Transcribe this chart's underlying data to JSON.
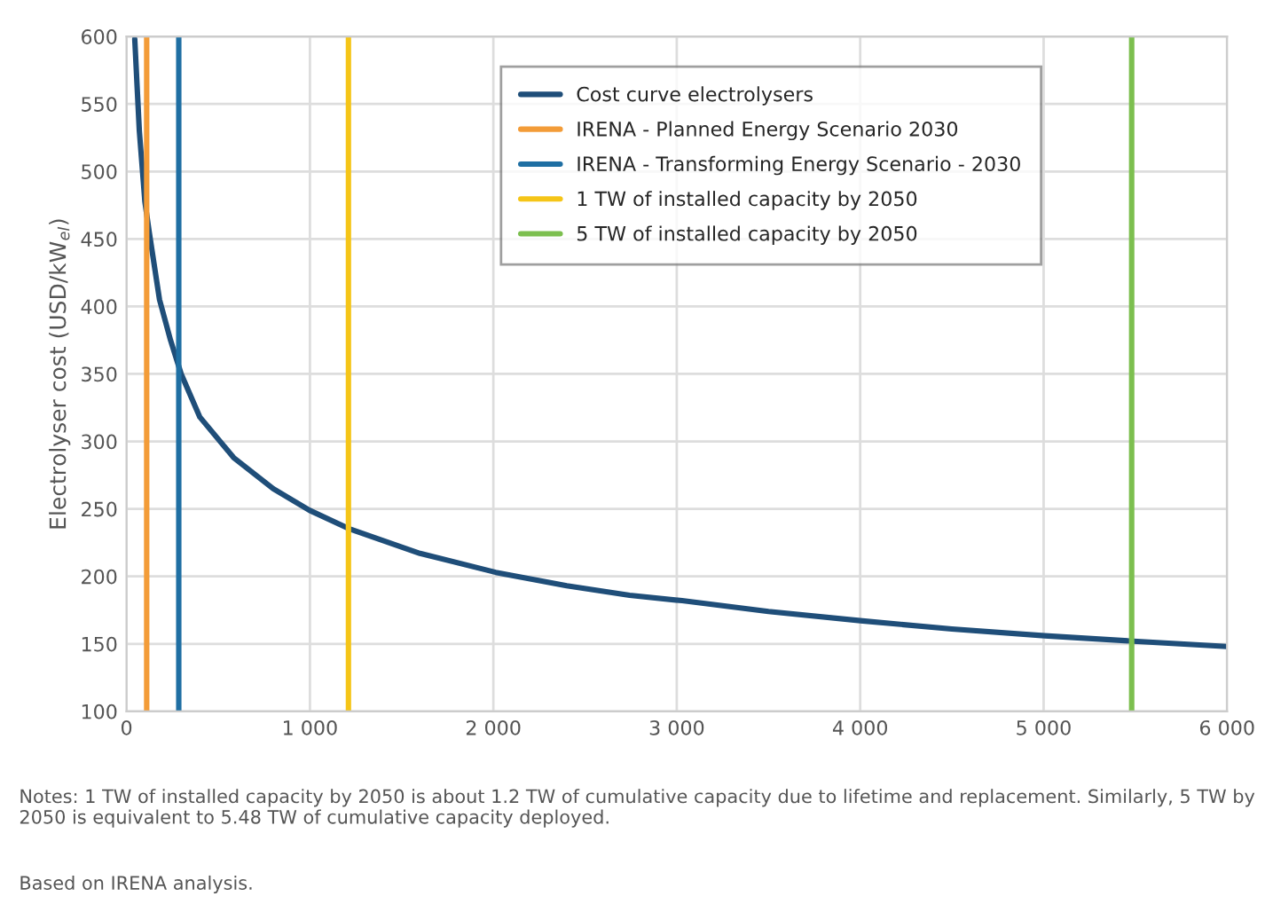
{
  "chart_data": {
    "type": "line",
    "ylabel": "Electrolyser cost (USD/kW$_{el}$)",
    "series": [
      {
        "name": "Cost curve electrolysers",
        "color": "#1f4e79",
        "x": [
          45,
          70,
          100,
          124,
          180,
          240,
          298,
          400,
          584,
          800,
          997,
          1219,
          1600,
          2013,
          2400,
          2743,
          3029,
          3500,
          4013,
          4500,
          5006,
          5489,
          6000
        ],
        "values": [
          598,
          530,
          478,
          455,
          405,
          375,
          350,
          318,
          288,
          265,
          249,
          235,
          217,
          203,
          193,
          186,
          182,
          174,
          167,
          161,
          156,
          152,
          148
        ]
      },
      {
        "name": "IRENA - Planned Energy Scenario 2030",
        "color": "#f39c38",
        "x": [
          110,
          110
        ],
        "values": [
          100,
          600
        ]
      },
      {
        "name": "IRENA - Transforming Energy Scenario - 2030",
        "color": "#1f6fa3",
        "x": [
          285,
          285
        ],
        "values": [
          100,
          600
        ]
      },
      {
        "name": "1 TW of installed capacity by 2050",
        "color": "#f5c518",
        "x": [
          1210,
          1210
        ],
        "values": [
          100,
          600
        ]
      },
      {
        "name": "5 TW of installed capacity by 2050",
        "color": "#7cbf4f",
        "x": [
          5480,
          5480
        ],
        "values": [
          100,
          600
        ]
      }
    ],
    "xlim": [
      0,
      6000
    ],
    "xticks": [
      0,
      {
        "value": 1000,
        "label": "1 000"
      },
      {
        "value": 2000,
        "label": "2 000"
      },
      {
        "value": 3000,
        "label": "3 000"
      },
      {
        "value": 4000,
        "label": "4 000"
      },
      {
        "value": 5000,
        "label": "5 000"
      },
      {
        "value": 6000,
        "label": "6 000"
      }
    ],
    "ylim": [
      100,
      600
    ],
    "yticks": [
      100,
      150,
      200,
      250,
      300,
      350,
      400,
      450,
      500,
      550,
      600
    ],
    "grid": true,
    "legend": "top right",
    "marker": "none",
    "line_style": "solid",
    "annotations": [
      "Notes: 1 TW of installed capacity by 2050 is about 1.2 TW of cumulative capacity due to lifetime and replacement. Similarly, 5 TW by 2050 is equivalent to 5.48 TW of cumulative capacity deployed.",
      "Based on IRENA analysis."
    ]
  }
}
